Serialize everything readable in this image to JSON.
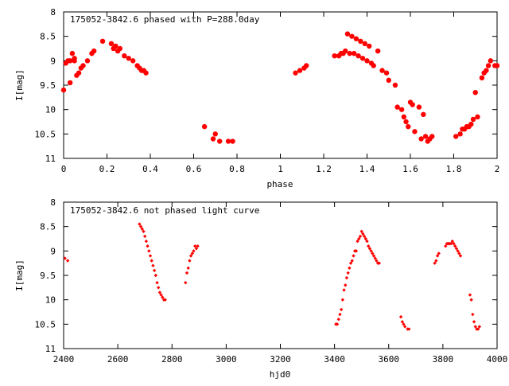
{
  "colors": {
    "marker": "#ff0000",
    "axis": "#000000",
    "background": "#ffffff"
  },
  "chart_data": [
    {
      "type": "scatter",
      "title": "175052-3842.6 phased with P=288.0day",
      "xlabel": "phase",
      "ylabel": "I[mag]",
      "xlim": [
        0,
        2
      ],
      "ylim": [
        8,
        11
      ],
      "y_inverted": true,
      "grid": false,
      "legend": "none",
      "marker": "filled-circle",
      "xticks": [
        "0",
        "0.2",
        "0.4",
        "0.6",
        "0.8",
        "1",
        "1.2",
        "1.4",
        "1.6",
        "1.8",
        "2"
      ],
      "yticks": [
        "8",
        "8.5",
        "9",
        "9.5",
        "10",
        "10.5",
        "11"
      ],
      "x": [
        0.0,
        0.01,
        0.02,
        0.03,
        0.03,
        0.04,
        0.05,
        0.05,
        0.06,
        0.07,
        0.08,
        0.09,
        0.11,
        0.13,
        0.14,
        0.18,
        0.22,
        0.23,
        0.24,
        0.25,
        0.26,
        0.28,
        0.3,
        0.32,
        0.34,
        0.35,
        0.36,
        0.37,
        0.38,
        0.65,
        0.69,
        0.7,
        0.72,
        0.76,
        0.78,
        1.07,
        1.09,
        1.11,
        1.12,
        1.25,
        1.27,
        1.28,
        1.29,
        1.3,
        1.31,
        1.32,
        1.33,
        1.34,
        1.35,
        1.36,
        1.37,
        1.38,
        1.39,
        1.4,
        1.41,
        1.42,
        1.43,
        1.45,
        1.47,
        1.49,
        1.5,
        1.53,
        1.54,
        1.56,
        1.57,
        1.58,
        1.59,
        1.6,
        1.61,
        1.62,
        1.64,
        1.65,
        1.66,
        1.67,
        1.68,
        1.69,
        1.7,
        1.81,
        1.83,
        1.84,
        1.85,
        1.86,
        1.87,
        1.88,
        1.89,
        1.9,
        1.91,
        1.93,
        1.94,
        1.95,
        1.96,
        1.97,
        1.99,
        2.0
      ],
      "y": [
        9.6,
        9.05,
        9.0,
        9.45,
        9.0,
        8.85,
        8.95,
        9.0,
        9.3,
        9.25,
        9.15,
        9.1,
        9.0,
        8.85,
        8.8,
        8.6,
        8.65,
        8.75,
        8.7,
        8.8,
        8.75,
        8.9,
        8.95,
        9.0,
        9.1,
        9.15,
        9.2,
        9.2,
        9.25,
        10.35,
        10.6,
        10.5,
        10.65,
        10.65,
        10.65,
        9.25,
        9.2,
        9.15,
        9.1,
        8.9,
        8.9,
        8.85,
        8.85,
        8.8,
        8.45,
        8.85,
        8.5,
        8.85,
        8.55,
        8.9,
        8.6,
        8.95,
        8.65,
        9.0,
        8.7,
        9.05,
        9.1,
        8.8,
        9.2,
        9.25,
        9.4,
        9.5,
        9.95,
        10.0,
        10.15,
        10.25,
        10.35,
        9.85,
        9.9,
        10.45,
        9.95,
        10.6,
        10.1,
        10.55,
        10.65,
        10.6,
        10.55,
        10.55,
        10.5,
        10.4,
        10.4,
        10.35,
        10.35,
        10.3,
        10.2,
        9.65,
        10.15,
        9.35,
        9.25,
        9.2,
        9.1,
        9.0,
        9.1,
        9.1
      ]
    },
    {
      "type": "scatter",
      "title": "175052-3842.6 not phased light curve",
      "xlabel": "hjd0",
      "ylabel": "I[mag]",
      "xlim": [
        2400,
        4000
      ],
      "ylim": [
        8,
        11
      ],
      "y_inverted": true,
      "grid": false,
      "legend": "none",
      "marker": "diamond",
      "xticks": [
        "2400",
        "2600",
        "2800",
        "3000",
        "3200",
        "3400",
        "3600",
        "3800",
        "4000"
      ],
      "yticks": [
        "8",
        "8.5",
        "9",
        "9.5",
        "10",
        "10.5",
        "11"
      ],
      "x": [
        2405,
        2415,
        2680,
        2685,
        2690,
        2695,
        2700,
        2705,
        2710,
        2715,
        2720,
        2725,
        2730,
        2735,
        2740,
        2745,
        2750,
        2755,
        2760,
        2765,
        2770,
        2775,
        2850,
        2855,
        2860,
        2865,
        2870,
        2875,
        2880,
        2885,
        2890,
        2895,
        3405,
        3410,
        3415,
        3420,
        3425,
        3430,
        3435,
        3440,
        3445,
        3450,
        3455,
        3460,
        3465,
        3470,
        3475,
        3480,
        3485,
        3490,
        3495,
        3500,
        3505,
        3510,
        3515,
        3520,
        3525,
        3530,
        3535,
        3540,
        3545,
        3550,
        3555,
        3560,
        3565,
        3645,
        3650,
        3655,
        3660,
        3670,
        3675,
        3770,
        3775,
        3780,
        3785,
        3810,
        3815,
        3820,
        3825,
        3830,
        3835,
        3840,
        3845,
        3850,
        3855,
        3860,
        3865,
        3900,
        3905,
        3910,
        3915,
        3920,
        3925,
        3930,
        3935
      ],
      "y": [
        9.15,
        9.2,
        8.45,
        8.5,
        8.55,
        8.6,
        8.7,
        8.8,
        8.9,
        9.0,
        9.1,
        9.2,
        9.3,
        9.4,
        9.5,
        9.65,
        9.75,
        9.85,
        9.9,
        9.95,
        10.0,
        10.0,
        9.65,
        9.45,
        9.35,
        9.2,
        9.1,
        9.05,
        9.0,
        8.9,
        8.95,
        8.9,
        10.5,
        10.5,
        10.4,
        10.3,
        10.2,
        10.0,
        9.8,
        9.7,
        9.55,
        9.45,
        9.35,
        9.25,
        9.2,
        9.1,
        9.0,
        9.0,
        8.8,
        8.75,
        8.7,
        8.6,
        8.65,
        8.7,
        8.75,
        8.8,
        8.9,
        8.95,
        9.0,
        9.05,
        9.1,
        9.15,
        9.2,
        9.25,
        9.25,
        10.35,
        10.45,
        10.5,
        10.55,
        10.6,
        10.6,
        9.25,
        9.2,
        9.1,
        9.05,
        8.9,
        8.85,
        8.85,
        8.85,
        8.85,
        8.8,
        8.85,
        8.9,
        8.95,
        9.0,
        9.05,
        9.1,
        9.9,
        10.0,
        10.3,
        10.45,
        10.55,
        10.6,
        10.6,
        10.55
      ]
    }
  ]
}
